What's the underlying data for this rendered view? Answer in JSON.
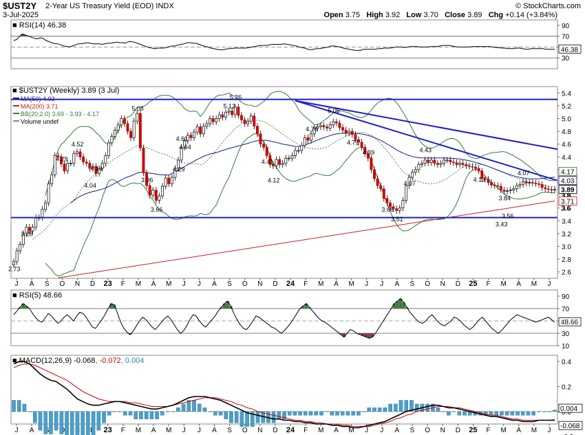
{
  "header": {
    "symbol": "$UST2Y",
    "description": "2-Year US Treasury Yield (EOD)",
    "exchange": "INDX",
    "date": "3-Jul-2025",
    "brand": "© StockCharts.com",
    "ohlc": {
      "open_label": "Open",
      "open": "3.75",
      "high_label": "High",
      "high": "3.92",
      "low_label": "Low",
      "low": "3.70",
      "close_label": "Close",
      "close": "3.89",
      "chg_label": "Chg",
      "chg": "+0.14 (+3.84%)"
    }
  },
  "colors": {
    "up": "#ffffff",
    "down": "#cc0000",
    "wick": "#000000",
    "ma50": "#1a1a8c",
    "ma200": "#d02020",
    "bb": "#2e7d32",
    "bbmid": "#2e7d32",
    "trendline": "#1c1ccc",
    "rsi_fill": "#3e7a3e",
    "rsi_fill_low": "#7a4040",
    "macd": "#000000",
    "signal": "#cc0000",
    "hist": "#4aa0c8"
  },
  "chart_data": [
    {
      "type": "line",
      "panel": "RSI(14)",
      "title": "RSI(14) 46.38",
      "ylim": [
        10,
        100
      ],
      "y_ticks": [
        90,
        70,
        50,
        30
      ],
      "reference_lines": [
        70,
        30
      ],
      "last_value": 46.38,
      "values": [
        62,
        64,
        70,
        74,
        72,
        70,
        68,
        66,
        65,
        67,
        66,
        62,
        60,
        58,
        56,
        56,
        54,
        52,
        51,
        50,
        52,
        54,
        56,
        56,
        57,
        58,
        57,
        56,
        56,
        56,
        55,
        56,
        57,
        57,
        58,
        59,
        58,
        58,
        57,
        60,
        60,
        59,
        57,
        55,
        53,
        51,
        49,
        48,
        47,
        48,
        48,
        48,
        49,
        51,
        52,
        52,
        54,
        55,
        56,
        58,
        58,
        57,
        57,
        55,
        53,
        51,
        50,
        48,
        47,
        46,
        45,
        45,
        46,
        47,
        47,
        48,
        48,
        48,
        48,
        48,
        49,
        50,
        51,
        52,
        53,
        53,
        53,
        54,
        55,
        55,
        55,
        55,
        56,
        55,
        54,
        53,
        52,
        50,
        49,
        48,
        46,
        45,
        46,
        47,
        47,
        48,
        49,
        50,
        52,
        52,
        51,
        50,
        48,
        47,
        46,
        45,
        44,
        44,
        44,
        46,
        46,
        46,
        46,
        46,
        47,
        47,
        48,
        48,
        48,
        49,
        50,
        50,
        50,
        49,
        50,
        51,
        51,
        51,
        50,
        50,
        50,
        50,
        51,
        51,
        51,
        52,
        53,
        53,
        53,
        52,
        51,
        50,
        50,
        50,
        50,
        50,
        51,
        51,
        51,
        51,
        51,
        51,
        51,
        50,
        49,
        49,
        48,
        48,
        47,
        47,
        47,
        48,
        48,
        47,
        46,
        46,
        47,
        47,
        47,
        47,
        47,
        46,
        46,
        46,
        46
      ]
    },
    {
      "type": "candlestick",
      "panel": "price",
      "title": "$UST2Y (Weekly) 3.89 (3 Jul)",
      "legend": [
        {
          "label": "MA(50) 4.03",
          "color": "#1a1a8c"
        },
        {
          "label": "MA(200) 3.71",
          "color": "#d02020"
        },
        {
          "label": "BB(20,2.0) 3.69 - 3.93 - 4.17",
          "color": "#2e7d32"
        },
        {
          "label": "Volume undef",
          "color": "#888888"
        }
      ],
      "ylim": [
        2.5,
        5.5
      ],
      "y_ticks": [
        5.4,
        5.2,
        5.0,
        4.8,
        4.6,
        4.4,
        4.2,
        4.0,
        3.8,
        3.6,
        3.4,
        3.2,
        3.0,
        2.8,
        2.6
      ],
      "x_labels": [
        "J",
        "A",
        "S",
        "O",
        "N",
        "D",
        "23",
        "F",
        "M",
        "A",
        "M",
        "J",
        "J",
        "A",
        "S",
        "O",
        "N",
        "D",
        "24",
        "F",
        "M",
        "A",
        "M",
        "J",
        "J",
        "A",
        "S",
        "O",
        "N",
        "D",
        "25",
        "F",
        "M",
        "A",
        "M",
        "J"
      ],
      "bold_x_labels": [
        "23",
        "24",
        "25"
      ],
      "closes": [
        2.76,
        2.93,
        3.03,
        3.2,
        3.3,
        3.24,
        3.3,
        3.45,
        3.45,
        3.58,
        3.68,
        3.98,
        4.12,
        4.42,
        4.4,
        4.29,
        4.18,
        4.3,
        4.3,
        4.45,
        4.48,
        4.4,
        4.32,
        4.3,
        4.22,
        4.25,
        4.14,
        4.22,
        4.3,
        4.42,
        4.62,
        4.72,
        4.82,
        4.9,
        5.0,
        4.92,
        4.8,
        4.7,
        4.96,
        5.08,
        4.54,
        4.15,
        3.95,
        3.8,
        3.88,
        3.72,
        3.79,
        3.94,
        4.07,
        3.98,
        4.08,
        4.22,
        4.35,
        4.55,
        4.65,
        4.74,
        4.7,
        4.79,
        4.87,
        4.76,
        4.88,
        4.92,
        5.0,
        4.95,
        5.0,
        5.06,
        5.02,
        5.1,
        5.12,
        5.06,
        5.18,
        5.05,
        4.98,
        4.92,
        4.96,
        5.04,
        4.88,
        4.76,
        4.6,
        4.55,
        4.42,
        4.28,
        4.26,
        4.36,
        4.28,
        4.3,
        4.38,
        4.38,
        4.42,
        4.5,
        4.5,
        4.58,
        4.7,
        4.66,
        4.76,
        4.85,
        4.87,
        4.89,
        4.87,
        4.85,
        4.9,
        4.95,
        4.93,
        4.86,
        4.82,
        4.77,
        4.8,
        4.75,
        4.67,
        4.63,
        4.55,
        4.45,
        4.38,
        4.2,
        4.06,
        3.95,
        3.9,
        3.75,
        3.68,
        3.62,
        3.59,
        3.56,
        3.6,
        3.72,
        3.95,
        4.08,
        4.16,
        4.2,
        4.28,
        4.3,
        4.35,
        4.31,
        4.35,
        4.3,
        4.28,
        4.3,
        4.35,
        4.35,
        4.32,
        4.31,
        4.28,
        4.3,
        4.28,
        4.26,
        4.25,
        4.24,
        4.22,
        4.18,
        4.06,
        4.05,
        4.0,
        3.96,
        3.95,
        3.94,
        3.88,
        3.86,
        3.87,
        3.88,
        3.9,
        3.95,
        3.97,
        4.01,
        3.99,
        4.0,
        3.99,
        3.98,
        3.97,
        3.92,
        3.9,
        3.89,
        3.88,
        3.89
      ],
      "annotations": [
        {
          "label": "2.73",
          "value": 2.73
        },
        {
          "label": "3.28",
          "value": 3.28
        },
        {
          "label": "4.29",
          "value": 4.29
        },
        {
          "label": "4.14",
          "value": 4.14
        },
        {
          "label": "4.52",
          "value": 4.52
        },
        {
          "label": "4.04",
          "value": 4.04
        },
        {
          "label": "5.08",
          "value": 5.08
        },
        {
          "label": "4.29",
          "value": 4.29
        },
        {
          "label": "3.96",
          "value": 3.96
        },
        {
          "label": "3.66",
          "value": 3.66
        },
        {
          "label": "4.64",
          "value": 4.64
        },
        {
          "label": "4.61",
          "value": 4.61
        },
        {
          "label": "5.12",
          "value": 5.12
        },
        {
          "label": "5.26",
          "value": 5.26
        },
        {
          "label": "4.12",
          "value": 4.12
        },
        {
          "label": "4.41",
          "value": 4.41
        },
        {
          "label": "4.76",
          "value": 4.76
        },
        {
          "label": "5.05",
          "value": 5.05
        },
        {
          "label": "4.71",
          "value": 4.71
        },
        {
          "label": "3.66",
          "value": 3.66
        },
        {
          "label": "3.51",
          "value": 3.51
        },
        {
          "label": "4.39",
          "value": 4.39
        },
        {
          "label": "4.07",
          "value": 4.07
        },
        {
          "label": "4.43",
          "value": 4.43
        },
        {
          "label": "4.13",
          "value": 4.13
        },
        {
          "label": "3.84",
          "value": 3.84
        },
        {
          "label": "3.56",
          "value": 3.56
        },
        {
          "label": "3.43",
          "value": 3.43
        },
        {
          "label": "4.07",
          "value": 4.07
        }
      ],
      "price_tags": [
        {
          "label": "4.17",
          "value": 4.17,
          "style": "bb"
        },
        {
          "label": "4.03",
          "value": 4.03,
          "style": "ma50"
        },
        {
          "label": "3.89",
          "value": 3.89,
          "style": "close"
        },
        {
          "label": "3.8",
          "value": 3.8,
          "style": "tick"
        },
        {
          "label": "3.71",
          "value": 3.71,
          "style": "ma200"
        },
        {
          "label": "3.6",
          "value": 3.6,
          "style": "tick"
        }
      ],
      "horizontal_lines": [
        5.3,
        3.45
      ],
      "trendlines": [
        {
          "from": {
            "x": 0.52,
            "y": 5.28
          },
          "to": {
            "x": 1.0,
            "y": 4.03
          }
        },
        {
          "from": {
            "x": 0.52,
            "y": 5.28
          },
          "to": {
            "x": 1.0,
            "y": 4.52
          }
        }
      ]
    },
    {
      "type": "line",
      "panel": "RSI(5)",
      "title": "RSI(5) 48.66",
      "ylim": [
        10,
        100
      ],
      "y_ticks": [
        90,
        70,
        50,
        30,
        10
      ],
      "reference_lines": [
        70,
        30
      ],
      "last_value": 48.66,
      "values": [
        60,
        66,
        72,
        78,
        74,
        70,
        62,
        55,
        50,
        48,
        55,
        62,
        58,
        52,
        46,
        50,
        56,
        60,
        55,
        50,
        58,
        64,
        62,
        56,
        48,
        40,
        38,
        45,
        52,
        60,
        70,
        78,
        76,
        62,
        48,
        38,
        32,
        28,
        34,
        42,
        50,
        56,
        52,
        46,
        40,
        36,
        42,
        48,
        54,
        58,
        52,
        44,
        36,
        30,
        34,
        42,
        52,
        60,
        58,
        50,
        44,
        40,
        46,
        52,
        58,
        66,
        72,
        78,
        82,
        74,
        62,
        52,
        44,
        38,
        36,
        42,
        50,
        58,
        56,
        52,
        48,
        44,
        40,
        38,
        34,
        30,
        34,
        40,
        46,
        54,
        62,
        70,
        74,
        78,
        72,
        66,
        60,
        54,
        50,
        48,
        44,
        40,
        36,
        32,
        28,
        24,
        30,
        36,
        34,
        30,
        28,
        26,
        24,
        22,
        24,
        30,
        38,
        46,
        54,
        62,
        70,
        78,
        82,
        86,
        80,
        72,
        64,
        58,
        52,
        48,
        46,
        50,
        56,
        60,
        54,
        48,
        44,
        42,
        46,
        50,
        56,
        54,
        50,
        44,
        40,
        36,
        40,
        46,
        52,
        56,
        50,
        44,
        38,
        34,
        30,
        34,
        40,
        46,
        52,
        56,
        60,
        58,
        56,
        54,
        52,
        50,
        48,
        50,
        52,
        54,
        56,
        52,
        48
      ]
    },
    {
      "type": "line",
      "panel": "MACD",
      "title": "MACD(12,26,9)",
      "title_values": [
        "-0.068",
        "-0.072",
        "0.004"
      ],
      "ylim": [
        -0.1,
        0.45
      ],
      "y_ticks": [
        0.4,
        0.2,
        0.0,
        -0.2
      ],
      "zero_line": 0,
      "series": [
        {
          "name": "MACD(12,26,9)",
          "last": -0.068,
          "values": [
            0.38,
            0.4,
            0.4,
            0.38,
            0.34,
            0.3,
            0.27,
            0.25,
            0.24,
            0.21,
            0.18,
            0.14,
            0.1,
            0.08,
            0.06,
            0.05,
            0.05,
            0.06,
            0.07,
            0.08,
            0.08,
            0.07,
            0.06,
            0.05,
            0.04,
            0.03,
            0.02,
            0.02,
            0.03,
            0.04,
            0.05,
            0.07,
            0.09,
            0.11,
            0.12,
            0.12,
            0.12,
            0.11,
            0.1,
            0.09,
            0.07,
            0.05,
            0.03,
            0.01,
            -0.01,
            -0.02,
            -0.03,
            -0.04,
            -0.05,
            -0.06,
            -0.06,
            -0.07,
            -0.07,
            -0.08,
            -0.08,
            -0.09,
            -0.09,
            -0.1,
            -0.1,
            -0.1,
            -0.11,
            -0.11,
            -0.12,
            -0.12,
            -0.13,
            -0.13,
            -0.12,
            -0.11,
            -0.1,
            -0.09,
            -0.08,
            -0.06,
            -0.04,
            -0.02,
            0.0,
            0.01,
            0.02,
            0.03,
            0.04,
            0.05,
            0.05,
            0.04,
            0.03,
            0.03,
            0.02,
            0.01,
            0.0,
            -0.01,
            -0.02,
            -0.03,
            -0.04,
            -0.04,
            -0.05,
            -0.06,
            -0.07,
            -0.07,
            -0.08,
            -0.08,
            -0.08,
            -0.07,
            -0.07,
            -0.07,
            -0.068
          ]
        },
        {
          "name": "Signal",
          "last": -0.072,
          "values": [
            0.35,
            0.37,
            0.38,
            0.38,
            0.37,
            0.35,
            0.33,
            0.31,
            0.29,
            0.27,
            0.25,
            0.22,
            0.19,
            0.16,
            0.14,
            0.12,
            0.1,
            0.09,
            0.08,
            0.08,
            0.08,
            0.08,
            0.07,
            0.07,
            0.06,
            0.05,
            0.04,
            0.04,
            0.04,
            0.04,
            0.05,
            0.06,
            0.07,
            0.08,
            0.09,
            0.1,
            0.11,
            0.11,
            0.11,
            0.1,
            0.09,
            0.08,
            0.06,
            0.05,
            0.03,
            0.02,
            0.0,
            -0.01,
            -0.02,
            -0.03,
            -0.04,
            -0.05,
            -0.06,
            -0.07,
            -0.07,
            -0.08,
            -0.08,
            -0.09,
            -0.09,
            -0.1,
            -0.1,
            -0.1,
            -0.11,
            -0.11,
            -0.12,
            -0.12,
            -0.12,
            -0.12,
            -0.11,
            -0.1,
            -0.09,
            -0.08,
            -0.06,
            -0.05,
            -0.03,
            -0.02,
            0.0,
            0.01,
            0.02,
            0.03,
            0.04,
            0.04,
            0.04,
            0.03,
            0.03,
            0.02,
            0.01,
            0.0,
            -0.01,
            -0.02,
            -0.03,
            -0.03,
            -0.04,
            -0.05,
            -0.06,
            -0.06,
            -0.07,
            -0.07,
            -0.07,
            -0.07,
            -0.07,
            -0.07,
            -0.072
          ]
        },
        {
          "name": "Histogram",
          "last": 0.004,
          "values": [
            0.03,
            0.03,
            0.02,
            0.0,
            -0.03,
            -0.05,
            -0.06,
            -0.06,
            -0.05,
            -0.06,
            -0.07,
            -0.08,
            -0.09,
            -0.08,
            -0.08,
            -0.07,
            -0.05,
            -0.03,
            -0.01,
            0.0,
            0.0,
            -0.01,
            -0.01,
            -0.02,
            -0.02,
            -0.02,
            -0.02,
            -0.02,
            -0.01,
            0.0,
            0.0,
            0.01,
            0.02,
            0.03,
            0.03,
            0.02,
            0.01,
            0.0,
            -0.01,
            -0.01,
            -0.02,
            -0.03,
            -0.03,
            -0.04,
            -0.04,
            -0.04,
            -0.03,
            -0.03,
            -0.03,
            -0.03,
            -0.02,
            -0.02,
            -0.01,
            -0.01,
            -0.01,
            -0.01,
            -0.01,
            -0.01,
            -0.01,
            0.0,
            -0.01,
            -0.01,
            -0.01,
            -0.01,
            -0.01,
            -0.01,
            0.0,
            0.01,
            0.01,
            0.01,
            0.01,
            0.02,
            0.02,
            0.03,
            0.03,
            0.03,
            0.02,
            0.02,
            0.02,
            0.02,
            0.01,
            0.0,
            -0.01,
            0.0,
            -0.01,
            -0.01,
            -0.01,
            -0.01,
            -0.01,
            -0.01,
            -0.01,
            -0.01,
            -0.01,
            -0.01,
            -0.01,
            -0.01,
            -0.01,
            -0.01,
            -0.01,
            0.0,
            0.0,
            0.0,
            0.004
          ]
        }
      ],
      "tags": [
        {
          "label": "0.004",
          "value": 0.004
        },
        {
          "label": "-0.068",
          "value": -0.068
        }
      ]
    }
  ]
}
